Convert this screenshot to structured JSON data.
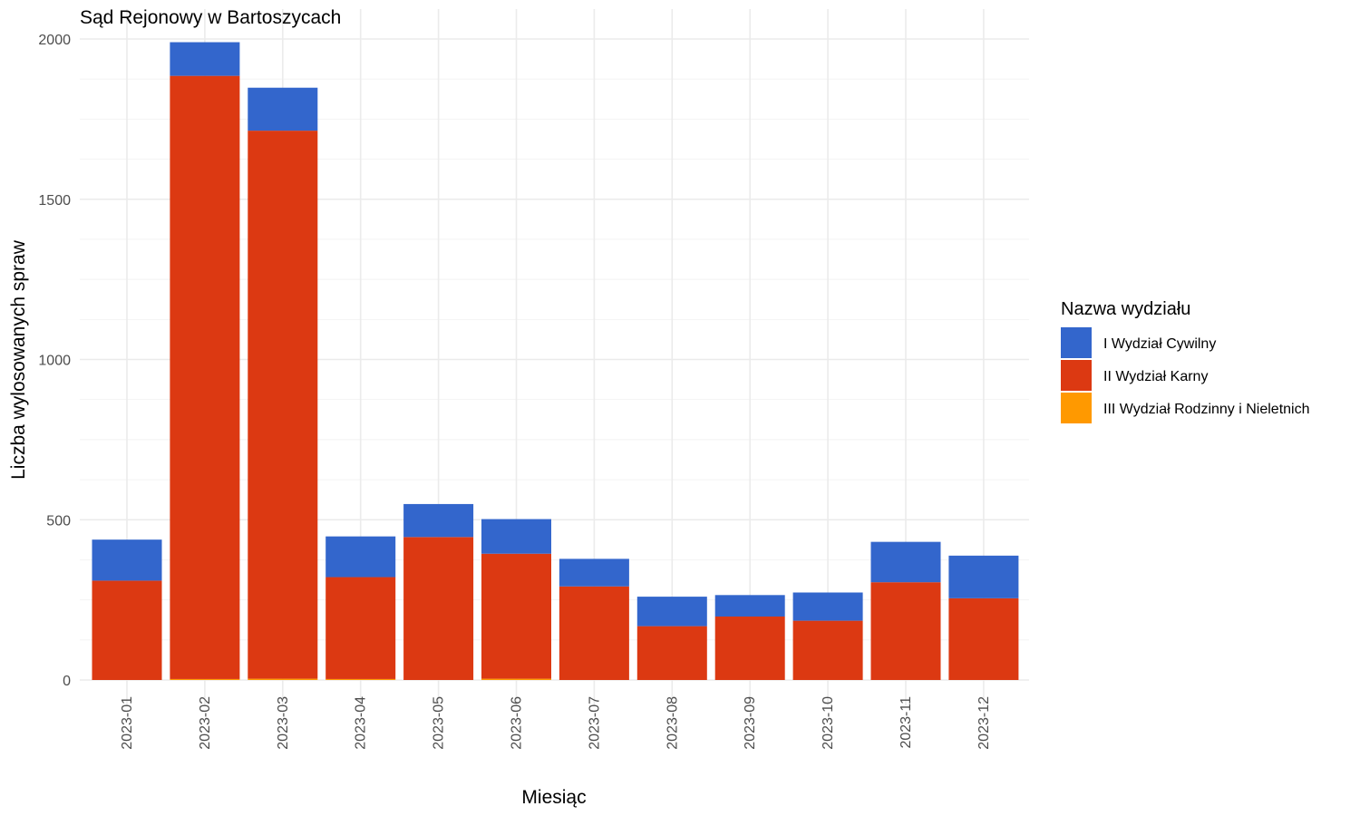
{
  "chart_data": {
    "type": "bar",
    "stacked": true,
    "title": "Sąd Rejonowy w Bartoszycach",
    "xlabel": "Miesiąc",
    "ylabel": "Liczba wylosowanych spraw",
    "ylim": [
      0,
      2000
    ],
    "yticks": [
      "0",
      "500",
      "1000",
      "1500",
      "2000"
    ],
    "categories": [
      "2023-01",
      "2023-02",
      "2023-03",
      "2023-04",
      "2023-05",
      "2023-06",
      "2023-07",
      "2023-08",
      "2023-09",
      "2023-10",
      "2023-11",
      "2023-12"
    ],
    "series": [
      {
        "name": "III Wydział Rodzinny i Nieletnich",
        "color": "#ff9900",
        "values": [
          0,
          3,
          4,
          3,
          0,
          4,
          0,
          0,
          0,
          0,
          0,
          0
        ]
      },
      {
        "name": "II Wydział Karny",
        "color": "#dc3912",
        "values": [
          310,
          1882,
          1710,
          318,
          446,
          390,
          292,
          168,
          198,
          185,
          305,
          255
        ]
      },
      {
        "name": "I Wydział Cywilny",
        "color": "#3366cc",
        "values": [
          128,
          105,
          134,
          127,
          103,
          108,
          86,
          92,
          67,
          88,
          126,
          133
        ]
      }
    ],
    "grid": true,
    "legend": {
      "title": "Nazwa wydziału",
      "position": "right",
      "order": [
        "I Wydział Cywilny",
        "II Wydział Karny",
        "III Wydział Rodzinny i Nieletnich"
      ]
    }
  }
}
